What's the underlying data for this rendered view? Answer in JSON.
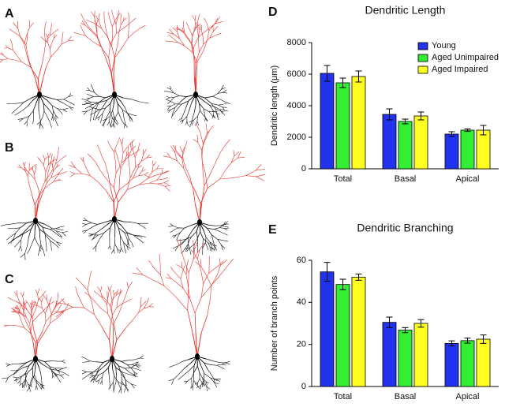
{
  "panels": [
    "A",
    "B",
    "C"
  ],
  "chart_data": [
    {
      "type": "bar",
      "panel": "D",
      "title": "Dendritic Length",
      "ylabel": "Dendritic length (μm)",
      "categories": [
        "Total",
        "Basal",
        "Apical"
      ],
      "series": [
        {
          "name": "Young",
          "color": "#2233ee",
          "values": [
            6050,
            3450,
            2200
          ],
          "errors": [
            500,
            350,
            150
          ]
        },
        {
          "name": "Aged Unimpaired",
          "color": "#33ee33",
          "values": [
            5450,
            3000,
            2450
          ],
          "errors": [
            300,
            150,
            80
          ]
        },
        {
          "name": "Aged Impaired",
          "color": "#ffff22",
          "values": [
            5850,
            3350,
            2450
          ],
          "errors": [
            350,
            250,
            300
          ]
        }
      ],
      "ylim": [
        0,
        8000
      ],
      "yticks": [
        0,
        2000,
        4000,
        6000,
        8000
      ],
      "legend": "upper right"
    },
    {
      "type": "bar",
      "panel": "E",
      "title": "Dendritic Branching",
      "ylabel": "Number of branch points",
      "categories": [
        "Total",
        "Basal",
        "Apical"
      ],
      "series": [
        {
          "color": "#2233ee",
          "values": [
            54.5,
            30.5,
            20.5
          ],
          "errors": [
            4.5,
            2.5,
            1.2
          ]
        },
        {
          "color": "#33ee33",
          "values": [
            48.5,
            26.8,
            21.8
          ],
          "errors": [
            2.5,
            1.2,
            1.2
          ]
        },
        {
          "color": "#ffff22",
          "values": [
            52,
            30,
            22.5
          ],
          "errors": [
            1.5,
            1.8,
            2
          ]
        }
      ],
      "ylim": [
        0,
        60
      ],
      "yticks": [
        0,
        20,
        40,
        60
      ]
    }
  ]
}
